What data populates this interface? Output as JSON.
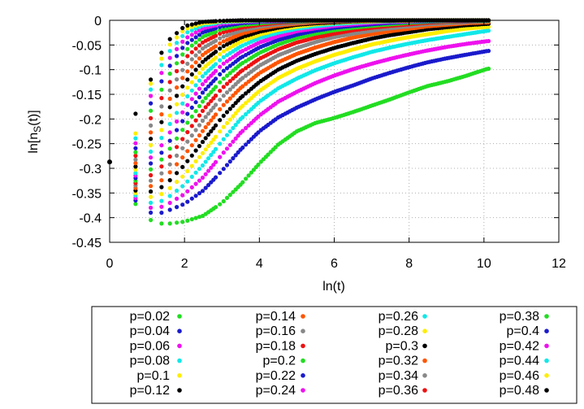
{
  "chart_data": {
    "type": "scatter",
    "title": "",
    "xlabel": "ln(t)",
    "ylabel_main": "ln[n",
    "ylabel_sub": "S",
    "ylabel_tail": "(t)]",
    "xlim": [
      0,
      12
    ],
    "ylim": [
      -0.45,
      0
    ],
    "xticks": [
      0,
      2,
      4,
      6,
      8,
      10,
      12
    ],
    "yticks": [
      0,
      -0.05,
      -0.1,
      -0.15,
      -0.2,
      -0.25,
      -0.3,
      -0.35,
      -0.4,
      -0.45
    ],
    "xtick_labels": [
      "0",
      "2",
      "4",
      "6",
      "8",
      "10",
      "12"
    ],
    "ytick_labels": [
      "0",
      "-0.05",
      "-0.1",
      "-0.15",
      "-0.2",
      "-0.25",
      "-0.3",
      "-0.35",
      "-0.4",
      "-0.45"
    ],
    "legend_position": "bottom",
    "initial_point": {
      "x": 0,
      "y": -0.287
    },
    "series": [
      {
        "name": "p=0.02",
        "color": "#22dd22",
        "x": [
          0.69,
          1.1,
          1.39,
          1.61,
          2.0,
          2.5,
          3.0,
          3.5,
          4.0,
          4.5,
          5.0,
          5.5,
          6.0,
          6.5,
          7.0,
          7.5,
          8.0,
          8.5,
          9.0,
          9.5,
          10.1
        ],
        "y": [
          -0.372,
          -0.405,
          -0.412,
          -0.412,
          -0.408,
          -0.396,
          -0.37,
          -0.333,
          -0.29,
          -0.252,
          -0.225,
          -0.208,
          -0.198,
          -0.186,
          -0.173,
          -0.16,
          -0.146,
          -0.133,
          -0.124,
          -0.113,
          -0.098
        ]
      },
      {
        "name": "p=0.04",
        "color": "#1a1acc",
        "x": [
          0.69,
          1.1,
          1.39,
          1.61,
          2.0,
          2.5,
          3.0,
          3.5,
          4.0,
          4.5,
          5.0,
          5.5,
          6.0,
          6.5,
          7.0,
          7.5,
          8.0,
          8.5,
          9.0,
          9.5,
          10.1
        ],
        "y": [
          -0.365,
          -0.39,
          -0.39,
          -0.384,
          -0.372,
          -0.345,
          -0.305,
          -0.262,
          -0.225,
          -0.197,
          -0.177,
          -0.16,
          -0.145,
          -0.132,
          -0.118,
          -0.106,
          -0.095,
          -0.085,
          -0.077,
          -0.07,
          -0.062
        ]
      },
      {
        "name": "p=0.06",
        "color": "#ee11ee",
        "x": [
          0.69,
          1.1,
          1.39,
          1.61,
          2.0,
          2.5,
          3.0,
          3.5,
          4.0,
          4.5,
          5.0,
          5.5,
          6.0,
          6.5,
          7.0,
          7.5,
          8.0,
          8.5,
          9.0,
          9.5,
          10.1
        ],
        "y": [
          -0.36,
          -0.38,
          -0.378,
          -0.37,
          -0.352,
          -0.318,
          -0.272,
          -0.228,
          -0.193,
          -0.165,
          -0.145,
          -0.127,
          -0.112,
          -0.099,
          -0.088,
          -0.078,
          -0.069,
          -0.061,
          -0.054,
          -0.048,
          -0.042
        ]
      },
      {
        "name": "p=0.08",
        "color": "#11e8e8",
        "x": [
          0.69,
          1.1,
          1.39,
          1.61,
          2.0,
          2.5,
          3.0,
          3.5,
          4.0,
          4.5,
          5.0,
          5.5,
          6.0,
          6.5,
          7.0,
          7.5,
          8.0,
          8.5,
          9.0,
          9.5,
          10.1
        ],
        "y": [
          -0.355,
          -0.37,
          -0.366,
          -0.356,
          -0.333,
          -0.293,
          -0.245,
          -0.2,
          -0.165,
          -0.138,
          -0.118,
          -0.101,
          -0.087,
          -0.075,
          -0.064,
          -0.055,
          -0.047,
          -0.04,
          -0.034,
          -0.028,
          -0.021
        ]
      },
      {
        "name": "p=0.1",
        "color": "#ffee00",
        "x": [
          0.69,
          1.1,
          1.39,
          1.61,
          2.0,
          2.5,
          3.0,
          3.5,
          4.0,
          4.5,
          5.0,
          5.5,
          6.0,
          6.5,
          7.0,
          7.5,
          8.0,
          8.5,
          9.0,
          9.5,
          10.1
        ],
        "y": [
          -0.35,
          -0.358,
          -0.352,
          -0.34,
          -0.313,
          -0.268,
          -0.22,
          -0.177,
          -0.143,
          -0.117,
          -0.098,
          -0.083,
          -0.07,
          -0.059,
          -0.049,
          -0.041,
          -0.034,
          -0.028,
          -0.022,
          -0.017,
          -0.013
        ]
      },
      {
        "name": "p=0.12",
        "color": "#000000",
        "x": [
          0.69,
          1.1,
          1.39,
          1.61,
          2.0,
          2.5,
          3.0,
          3.5,
          4.0,
          4.5,
          5.0,
          5.5,
          6.0,
          6.5,
          7.0,
          7.5,
          8.0,
          8.5,
          9.0,
          9.5,
          10.1
        ],
        "y": [
          -0.345,
          -0.347,
          -0.338,
          -0.324,
          -0.293,
          -0.245,
          -0.197,
          -0.157,
          -0.125,
          -0.1,
          -0.082,
          -0.068,
          -0.056,
          -0.046,
          -0.037,
          -0.03,
          -0.024,
          -0.018,
          -0.014,
          -0.01,
          -0.007
        ]
      },
      {
        "name": "p=0.14",
        "color": "#ff5500",
        "x": [
          0.69,
          1.1,
          1.39,
          1.61,
          2.0,
          2.5,
          3.0,
          3.5,
          4.0,
          4.5,
          5.0,
          5.5,
          6.0,
          6.5,
          7.0,
          7.5,
          8.0,
          8.5,
          9.0,
          9.5,
          10.1
        ],
        "y": [
          -0.34,
          -0.336,
          -0.324,
          -0.308,
          -0.273,
          -0.223,
          -0.175,
          -0.137,
          -0.107,
          -0.085,
          -0.068,
          -0.055,
          -0.044,
          -0.035,
          -0.028,
          -0.022,
          -0.017,
          -0.012,
          -0.009,
          -0.006,
          -0.004
        ]
      },
      {
        "name": "p=0.16",
        "color": "#888888",
        "x": [
          0.69,
          1.1,
          1.39,
          1.61,
          2.0,
          2.5,
          3.0,
          3.5,
          4.0,
          4.5,
          5.0,
          5.5,
          6.0,
          6.5,
          7.0,
          7.5,
          8.0,
          8.5,
          9.0,
          9.5,
          10.1
        ],
        "y": [
          -0.335,
          -0.325,
          -0.31,
          -0.292,
          -0.254,
          -0.202,
          -0.156,
          -0.12,
          -0.092,
          -0.071,
          -0.056,
          -0.044,
          -0.034,
          -0.027,
          -0.021,
          -0.016,
          -0.012,
          -0.008,
          -0.006,
          -0.004,
          -0.002
        ]
      },
      {
        "name": "p=0.18",
        "color": "#ee1111",
        "x": [
          0.69,
          1.1,
          1.39,
          1.61,
          2.0,
          2.5,
          3.0,
          3.5,
          4.0,
          4.5,
          5.0,
          5.5,
          6.0,
          6.5,
          7.0,
          7.5,
          8.0,
          8.5,
          9.0,
          9.5,
          10.1
        ],
        "y": [
          -0.33,
          -0.314,
          -0.296,
          -0.276,
          -0.235,
          -0.182,
          -0.138,
          -0.104,
          -0.078,
          -0.059,
          -0.045,
          -0.035,
          -0.027,
          -0.02,
          -0.015,
          -0.011,
          -0.008,
          -0.005,
          -0.003,
          -0.002,
          -0.001
        ]
      },
      {
        "name": "p=0.2",
        "color": "#22dd22",
        "x": [
          0.69,
          1.1,
          1.39,
          1.61,
          2.0,
          2.5,
          3.0,
          3.5,
          4.0,
          4.5,
          5.0,
          5.5,
          6.0,
          6.5,
          7.0,
          7.5,
          8.0,
          8.5,
          9.0,
          9.5,
          10.1
        ],
        "y": [
          -0.325,
          -0.302,
          -0.282,
          -0.26,
          -0.216,
          -0.163,
          -0.121,
          -0.089,
          -0.066,
          -0.049,
          -0.036,
          -0.027,
          -0.02,
          -0.015,
          -0.011,
          -0.008,
          -0.005,
          -0.003,
          -0.002,
          -0.001,
          -0.001
        ]
      },
      {
        "name": "p=0.22",
        "color": "#1a1acc",
        "x": [
          0.69,
          1.1,
          1.39,
          1.61,
          2.0,
          2.5,
          3.0,
          3.5,
          4.0,
          4.5,
          5.0,
          5.5,
          6.0,
          6.5,
          7.0,
          7.5,
          8.0,
          8.5,
          9.0,
          9.5,
          10.1
        ],
        "y": [
          -0.32,
          -0.29,
          -0.268,
          -0.244,
          -0.198,
          -0.145,
          -0.105,
          -0.076,
          -0.055,
          -0.04,
          -0.029,
          -0.021,
          -0.015,
          -0.011,
          -0.008,
          -0.005,
          -0.003,
          -0.002,
          -0.001,
          -0.001,
          0
        ]
      },
      {
        "name": "p=0.24",
        "color": "#ee11ee",
        "x": [
          0.69,
          1.1,
          1.39,
          1.61,
          2.0,
          2.5,
          3.0,
          3.5,
          4.0,
          4.5,
          5.0,
          5.5,
          6.0,
          6.5,
          7.0,
          7.5,
          8.0,
          8.5,
          9.0,
          9.5,
          10.1
        ],
        "y": [
          -0.315,
          -0.278,
          -0.253,
          -0.227,
          -0.18,
          -0.128,
          -0.09,
          -0.064,
          -0.045,
          -0.032,
          -0.022,
          -0.016,
          -0.011,
          -0.008,
          -0.005,
          -0.003,
          -0.002,
          -0.001,
          -0.001,
          0,
          0
        ]
      },
      {
        "name": "p=0.26",
        "color": "#11e8e8",
        "x": [
          0.69,
          1.1,
          1.39,
          1.61,
          2.0,
          2.5,
          3.0,
          3.5,
          4.0,
          4.5,
          5.0,
          5.5,
          6.0,
          6.5,
          7.0,
          7.5,
          8.0,
          8.5,
          9.0,
          9.5,
          10.1
        ],
        "y": [
          -0.31,
          -0.266,
          -0.238,
          -0.21,
          -0.162,
          -0.112,
          -0.077,
          -0.053,
          -0.036,
          -0.025,
          -0.017,
          -0.012,
          -0.008,
          -0.005,
          -0.003,
          -0.002,
          -0.001,
          -0.001,
          0,
          0,
          0
        ]
      },
      {
        "name": "p=0.28",
        "color": "#ffee00",
        "x": [
          0.69,
          1.1,
          1.39,
          1.61,
          2.0,
          2.5,
          3.0,
          3.5,
          4.0,
          4.5,
          5.0,
          5.5,
          6.0,
          6.5,
          7.0,
          7.5,
          8.0,
          8.5,
          9.0,
          9.5,
          10.1
        ],
        "y": [
          -0.303,
          -0.253,
          -0.222,
          -0.193,
          -0.144,
          -0.097,
          -0.065,
          -0.043,
          -0.029,
          -0.019,
          -0.013,
          -0.008,
          -0.005,
          -0.003,
          -0.002,
          -0.001,
          -0.001,
          0,
          0,
          0,
          0
        ]
      },
      {
        "name": "p=0.3",
        "color": "#000000",
        "x": [
          0.69,
          1.1,
          1.39,
          1.61,
          2.0,
          2.5,
          3.0,
          3.5,
          4.0,
          4.5,
          5.0,
          5.5,
          6.0,
          6.5,
          7.0,
          7.5,
          8.0,
          8.5,
          9.0,
          9.5,
          10.1
        ],
        "y": [
          -0.297,
          -0.24,
          -0.206,
          -0.176,
          -0.127,
          -0.083,
          -0.054,
          -0.035,
          -0.023,
          -0.015,
          -0.009,
          -0.006,
          -0.004,
          -0.002,
          -0.001,
          -0.001,
          0,
          0,
          0,
          0,
          0
        ]
      },
      {
        "name": "p=0.32",
        "color": "#ff5500",
        "x": [
          0.69,
          1.1,
          1.39,
          1.61,
          2.0,
          2.5,
          3.0,
          3.5,
          4.0,
          4.5,
          5.0,
          5.5,
          6.0,
          6.5,
          7.0,
          7.5,
          8.0,
          8.5,
          9.0,
          9.5,
          10.1
        ],
        "y": [
          -0.29,
          -0.227,
          -0.19,
          -0.159,
          -0.11,
          -0.069,
          -0.044,
          -0.028,
          -0.017,
          -0.011,
          -0.007,
          -0.004,
          -0.002,
          -0.001,
          -0.001,
          0,
          0,
          0,
          0,
          0,
          0
        ]
      },
      {
        "name": "p=0.34",
        "color": "#888888",
        "x": [
          0.69,
          1.1,
          1.39,
          1.61,
          2.0,
          2.5,
          3.0,
          3.5,
          4.0,
          4.5,
          5.0,
          5.5,
          6.0,
          6.5,
          7.0,
          7.5,
          8.0,
          8.5,
          9.0,
          9.5,
          10.1
        ],
        "y": [
          -0.283,
          -0.213,
          -0.174,
          -0.142,
          -0.094,
          -0.056,
          -0.034,
          -0.021,
          -0.013,
          -0.008,
          -0.005,
          -0.003,
          -0.002,
          -0.001,
          0,
          0,
          0,
          0,
          0,
          0,
          0
        ]
      },
      {
        "name": "p=0.36",
        "color": "#ee1111",
        "x": [
          0.69,
          1.1,
          1.39,
          1.61,
          2.0,
          2.5,
          3.0,
          3.5,
          4.0,
          4.5,
          5.0,
          5.5,
          6.0,
          6.5,
          7.0,
          7.5,
          8.0,
          8.5,
          9.0,
          9.5,
          10.1
        ],
        "y": [
          -0.275,
          -0.198,
          -0.157,
          -0.125,
          -0.078,
          -0.044,
          -0.025,
          -0.015,
          -0.009,
          -0.005,
          -0.003,
          -0.002,
          -0.001,
          0,
          0,
          0,
          0,
          0,
          0,
          0,
          0
        ]
      },
      {
        "name": "p=0.38",
        "color": "#22dd22",
        "x": [
          0.69,
          1.1,
          1.39,
          1.61,
          2.0,
          2.5,
          3.0,
          3.5,
          4.0,
          4.5,
          5.0,
          5.5,
          6.0,
          6.5,
          7.0,
          7.5,
          8.0,
          8.5,
          9.0,
          9.5,
          10.1
        ],
        "y": [
          -0.268,
          -0.183,
          -0.14,
          -0.108,
          -0.063,
          -0.033,
          -0.018,
          -0.01,
          -0.006,
          -0.003,
          -0.002,
          -0.001,
          0,
          0,
          0,
          0,
          0,
          0,
          0,
          0,
          0
        ]
      },
      {
        "name": "p=0.4",
        "color": "#1a1acc",
        "x": [
          0.69,
          1.1,
          1.39,
          1.61,
          2.0,
          2.5,
          3.0,
          3.5,
          4.0,
          4.5,
          5.0,
          5.5,
          6.0,
          6.5,
          7.0,
          7.5,
          8.0,
          8.5,
          9.0,
          9.5,
          10.1
        ],
        "y": [
          -0.26,
          -0.168,
          -0.123,
          -0.092,
          -0.05,
          -0.024,
          -0.012,
          -0.006,
          -0.003,
          -0.002,
          -0.001,
          0,
          0,
          0,
          0,
          0,
          0,
          0,
          0,
          0,
          0
        ]
      },
      {
        "name": "p=0.42",
        "color": "#ee11ee",
        "x": [
          0.69,
          1.1,
          1.39,
          1.61,
          2.0,
          2.5,
          3.0,
          3.5,
          4.0,
          4.5,
          5.0,
          5.5,
          6.0,
          6.5,
          7.0,
          7.5,
          8.0,
          8.5,
          9.0,
          9.5,
          10.1
        ],
        "y": [
          -0.25,
          -0.153,
          -0.106,
          -0.076,
          -0.038,
          -0.016,
          -0.007,
          -0.003,
          -0.002,
          -0.001,
          0,
          0,
          0,
          0,
          0,
          0,
          0,
          0,
          0,
          0,
          0
        ]
      },
      {
        "name": "p=0.44",
        "color": "#11e8e8",
        "x": [
          0.69,
          1.1,
          1.39,
          1.61,
          2.0,
          2.5,
          3.0,
          3.5,
          4.0,
          4.5,
          5.0,
          5.5,
          6.0,
          6.5,
          7.0,
          7.5,
          8.0,
          8.5,
          9.0,
          9.5,
          10.1
        ],
        "y": [
          -0.24,
          -0.14,
          -0.09,
          -0.062,
          -0.027,
          -0.01,
          -0.004,
          -0.002,
          -0.001,
          0,
          0,
          0,
          0,
          0,
          0,
          0,
          0,
          0,
          0,
          0,
          0
        ]
      },
      {
        "name": "p=0.46",
        "color": "#ffee00",
        "x": [
          0.69,
          1.1,
          1.39,
          1.61,
          2.0,
          2.5,
          3.0,
          3.5,
          4.0,
          4.5,
          5.0,
          5.5,
          6.0,
          6.5,
          7.0,
          7.5,
          8.0,
          8.5,
          9.0,
          9.5,
          10.1
        ],
        "y": [
          -0.23,
          -0.128,
          -0.077,
          -0.049,
          -0.018,
          -0.006,
          -0.002,
          -0.001,
          0,
          0,
          0,
          0,
          0,
          0,
          0,
          0,
          0,
          0,
          0,
          0,
          0
        ]
      },
      {
        "name": "p=0.48",
        "color": "#000000",
        "x": [
          0.69,
          1.1,
          1.39,
          1.61,
          2.0,
          2.5,
          3.0,
          3.5,
          4.0,
          4.5,
          5.0,
          5.5,
          6.0,
          6.5,
          7.0,
          7.5,
          8.0,
          8.5,
          9.0,
          9.5,
          10.1
        ],
        "y": [
          -0.19,
          -0.12,
          -0.065,
          -0.038,
          -0.012,
          -0.003,
          -0.001,
          0,
          0,
          0,
          0,
          0,
          0,
          0,
          0,
          0,
          0,
          0,
          0,
          0,
          0
        ]
      }
    ]
  }
}
